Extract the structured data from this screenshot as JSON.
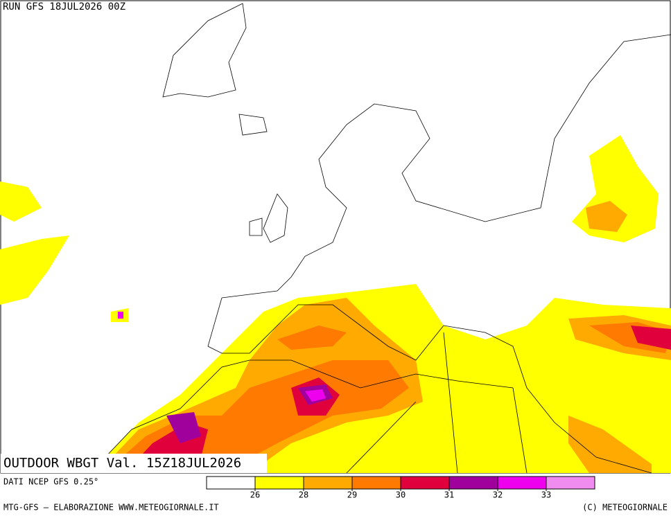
{
  "header": {
    "run": "RUN GFS 18JUL2026 00Z",
    "title": "OUTDOOR WBGT Val. 15Z18JUL2026"
  },
  "source": "DATI NCEP GFS 0.25°",
  "legend": {
    "colors": [
      "#ffffff",
      "#ffff00",
      "#ffaa00",
      "#ff7a00",
      "#e0003c",
      "#a0009c",
      "#ee00ee",
      "#f08cf0"
    ],
    "ticks": [
      26,
      28,
      29,
      30,
      31,
      32,
      33
    ]
  },
  "footer": {
    "left": "MTG-GFS – ELABORAZIONE WWW.METEOGIORNALE.IT",
    "right": "(C) METEOGIORNALE"
  }
}
